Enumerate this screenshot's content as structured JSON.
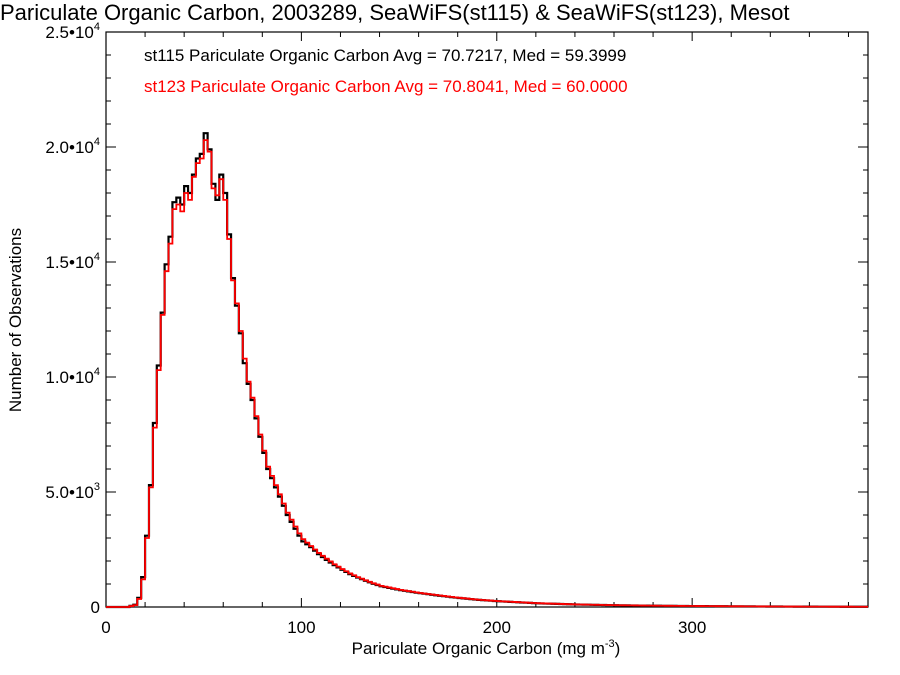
{
  "chart_data": {
    "type": "line",
    "title": "Pariculate Organic Carbon, 2003289, SeaWiFS(st115) & SeaWiFS(st123), Mesot",
    "xlabel": "Pariculate Organic Carbon (mg m",
    "xlabel_sup": "-3",
    "xlabel_end": ")",
    "ylabel": "Number of Observations",
    "xlim": [
      0,
      390
    ],
    "ylim": [
      0,
      25000
    ],
    "grid": false,
    "legend_position": "top-left",
    "x_ticks": [
      {
        "value": 0,
        "label": "0"
      },
      {
        "value": 100,
        "label": "100"
      },
      {
        "value": 200,
        "label": "200"
      },
      {
        "value": 300,
        "label": "300"
      }
    ],
    "y_ticks": [
      {
        "value": 0,
        "label": "0"
      },
      {
        "value": 5000,
        "mantissa": "5.0•10",
        "exp": "3"
      },
      {
        "value": 10000,
        "mantissa": "1.0•10",
        "exp": "4"
      },
      {
        "value": 15000,
        "mantissa": "1.5•10",
        "exp": "4"
      },
      {
        "value": 20000,
        "mantissa": "2.0•10",
        "exp": "4"
      },
      {
        "value": 25000,
        "mantissa": "2.5•10",
        "exp": "4"
      }
    ],
    "series": [
      {
        "name": "st115 Pariculate Organic Carbon Avg = 70.7217, Med = 59.3999",
        "color": "#000000",
        "bin_width": 2,
        "x": [
          0,
          10,
          14,
          16,
          18,
          20,
          22,
          24,
          26,
          28,
          30,
          32,
          34,
          36,
          38,
          40,
          42,
          44,
          46,
          48,
          50,
          52,
          54,
          56,
          58,
          60,
          62,
          64,
          66,
          68,
          70,
          72,
          74,
          76,
          78,
          80,
          82,
          84,
          86,
          88,
          90,
          92,
          94,
          96,
          98,
          100,
          104,
          108,
          112,
          116,
          120,
          124,
          128,
          132,
          136,
          140,
          150,
          160,
          170,
          180,
          190,
          200,
          220,
          240,
          260,
          280,
          300,
          320,
          340,
          360,
          390
        ],
        "y": [
          0,
          0,
          100,
          400,
          1300,
          3100,
          5300,
          8000,
          10500,
          12800,
          14900,
          16100,
          17600,
          17800,
          17500,
          18300,
          18000,
          18800,
          19500,
          19700,
          20600,
          19900,
          18400,
          17700,
          18800,
          18000,
          16200,
          14300,
          13100,
          11900,
          10600,
          9700,
          9000,
          8200,
          7400,
          6700,
          6000,
          5600,
          5200,
          4800,
          4400,
          4000,
          3700,
          3400,
          3100,
          2850,
          2600,
          2300,
          2050,
          1820,
          1620,
          1430,
          1280,
          1140,
          1010,
          900,
          730,
          600,
          490,
          390,
          310,
          250,
          160,
          110,
          75,
          55,
          40,
          30,
          22,
          15,
          10
        ]
      },
      {
        "name": "st123 Pariculate Organic Carbon Avg = 70.8041, Med = 60.0000",
        "color": "#ff0000",
        "bin_width": 2,
        "x": [
          0,
          10,
          14,
          16,
          18,
          20,
          22,
          24,
          26,
          28,
          30,
          32,
          34,
          36,
          38,
          40,
          42,
          44,
          46,
          48,
          50,
          52,
          54,
          56,
          58,
          60,
          62,
          64,
          66,
          68,
          70,
          72,
          74,
          76,
          78,
          80,
          82,
          84,
          86,
          88,
          90,
          92,
          94,
          96,
          98,
          100,
          104,
          108,
          112,
          116,
          120,
          124,
          128,
          132,
          136,
          140,
          150,
          160,
          170,
          180,
          190,
          200,
          220,
          240,
          260,
          280,
          300,
          320,
          340,
          360,
          390
        ],
        "y": [
          0,
          0,
          80,
          350,
          1200,
          3000,
          5200,
          7800,
          10300,
          12700,
          14600,
          15800,
          17300,
          17500,
          17200,
          18000,
          17700,
          18700,
          19300,
          19500,
          20300,
          19800,
          18200,
          17900,
          18600,
          17700,
          16000,
          14200,
          13200,
          12000,
          10800,
          9800,
          9100,
          8300,
          7500,
          6800,
          6100,
          5700,
          5300,
          4900,
          4500,
          4100,
          3800,
          3500,
          3200,
          2950,
          2650,
          2350,
          2100,
          1860,
          1650,
          1460,
          1300,
          1160,
          1030,
          920,
          745,
          610,
          500,
          400,
          315,
          255,
          165,
          112,
          78,
          57,
          42,
          31,
          23,
          16,
          11
        ]
      }
    ]
  }
}
